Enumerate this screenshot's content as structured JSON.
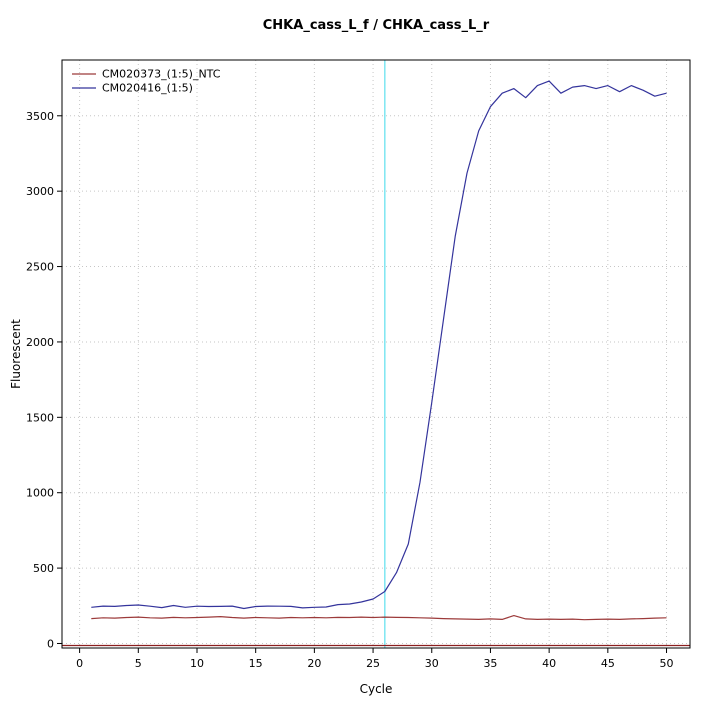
{
  "chart_data": {
    "type": "line",
    "title": "CHKA_cass_L_f / CHKA_cass_L_r",
    "xlabel": "Cycle",
    "ylabel": "Fluorescent",
    "xlim": [
      -1.5,
      52
    ],
    "ylim": [
      -30,
      3870
    ],
    "xticks": [
      0,
      5,
      10,
      15,
      20,
      25,
      30,
      35,
      40,
      45,
      50
    ],
    "yticks": [
      0,
      500,
      1000,
      1500,
      2000,
      2500,
      3000,
      3500
    ],
    "grid": true,
    "legend_position": "top-left",
    "x": [
      1,
      2,
      3,
      4,
      5,
      6,
      7,
      8,
      9,
      10,
      11,
      12,
      13,
      14,
      15,
      16,
      17,
      18,
      19,
      20,
      21,
      22,
      23,
      24,
      25,
      26,
      27,
      28,
      29,
      30,
      31,
      32,
      33,
      34,
      35,
      36,
      37,
      38,
      39,
      40,
      41,
      42,
      43,
      44,
      45,
      46,
      47,
      48,
      49,
      50
    ],
    "series": [
      {
        "name": "CM020373_(1:5)_NTC",
        "color": "#9c3a3a",
        "values": [
          165,
          170,
          168,
          172,
          175,
          170,
          168,
          173,
          170,
          172,
          175,
          178,
          172,
          168,
          172,
          170,
          168,
          172,
          170,
          172,
          170,
          173,
          172,
          175,
          172,
          175,
          173,
          172,
          170,
          168,
          165,
          163,
          162,
          160,
          163,
          160,
          185,
          163,
          160,
          162,
          160,
          162,
          158,
          160,
          162,
          160,
          163,
          165,
          168,
          170
        ]
      },
      {
        "name": "CM020416_(1:5)",
        "color": "#34349c",
        "values": [
          240,
          248,
          246,
          252,
          255,
          247,
          238,
          252,
          240,
          247,
          245,
          246,
          248,
          232,
          245,
          248,
          247,
          246,
          236,
          240,
          242,
          258,
          262,
          275,
          295,
          345,
          470,
          660,
          1070,
          1600,
          2150,
          2700,
          3120,
          3400,
          3560,
          3650,
          3680,
          3620,
          3700,
          3730,
          3650,
          3690,
          3700,
          3680,
          3700,
          3660,
          3700,
          3670,
          3630,
          3650
        ]
      }
    ],
    "threshold_line": {
      "y": 0,
      "color": "#8b1f1f"
    },
    "ct_line": {
      "x": 26,
      "color": "#7de6f2"
    },
    "grid_color": "#c6c6c6",
    "border_color": "#000000"
  }
}
